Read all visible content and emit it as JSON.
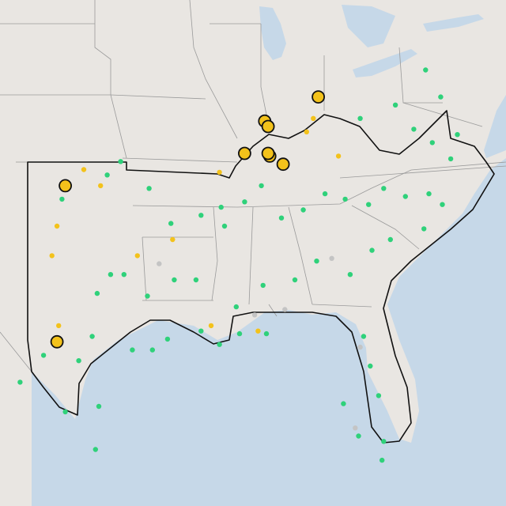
{
  "map": {
    "colors": {
      "land": "#e9e6e2",
      "water": "#c6d8e8",
      "region_outline": "#111111",
      "state_border": "#9a9a9a",
      "site_green": "#2fd17a",
      "site_yellow": "#f3c21b",
      "site_gray": "#c4c4c4",
      "large_marker_stroke": "#111111"
    },
    "legend": [],
    "sites": [
      {
        "lon": -99.5,
        "lat": 35.4,
        "status": "green"
      },
      {
        "lon": -98.2,
        "lat": 36.5,
        "status": "yellow"
      },
      {
        "lon": -97.2,
        "lat": 35.9,
        "status": "yellow"
      },
      {
        "lon": -96.8,
        "lat": 36.3,
        "status": "green"
      },
      {
        "lon": -96.0,
        "lat": 36.8,
        "status": "green"
      },
      {
        "lon": -94.3,
        "lat": 35.8,
        "status": "green"
      },
      {
        "lon": -93.0,
        "lat": 34.5,
        "status": "green"
      },
      {
        "lon": -91.2,
        "lat": 34.8,
        "status": "green"
      },
      {
        "lon": -90.0,
        "lat": 35.1,
        "status": "green"
      },
      {
        "lon": -89.8,
        "lat": 34.4,
        "status": "green"
      },
      {
        "lon": -88.6,
        "lat": 35.3,
        "status": "green"
      },
      {
        "lon": -87.6,
        "lat": 35.9,
        "status": "green"
      },
      {
        "lon": -86.4,
        "lat": 34.7,
        "status": "green"
      },
      {
        "lon": -85.1,
        "lat": 35.0,
        "status": "green"
      },
      {
        "lon": -83.8,
        "lat": 35.6,
        "status": "green"
      },
      {
        "lon": -82.6,
        "lat": 35.4,
        "status": "green"
      },
      {
        "lon": -81.2,
        "lat": 35.2,
        "status": "green"
      },
      {
        "lon": -80.3,
        "lat": 35.8,
        "status": "green"
      },
      {
        "lon": -79.0,
        "lat": 35.5,
        "status": "green"
      },
      {
        "lon": -77.6,
        "lat": 35.6,
        "status": "green"
      },
      {
        "lon": -76.8,
        "lat": 35.2,
        "status": "green"
      },
      {
        "lon": -77.9,
        "lat": 34.3,
        "status": "green"
      },
      {
        "lon": -79.9,
        "lat": 33.9,
        "status": "green"
      },
      {
        "lon": -81.0,
        "lat": 33.5,
        "status": "green"
      },
      {
        "lon": -82.3,
        "lat": 32.6,
        "status": "green"
      },
      {
        "lon": -84.3,
        "lat": 33.1,
        "status": "green"
      },
      {
        "lon": -85.6,
        "lat": 32.4,
        "status": "green"
      },
      {
        "lon": -87.5,
        "lat": 32.2,
        "status": "green"
      },
      {
        "lon": -89.1,
        "lat": 31.4,
        "status": "green"
      },
      {
        "lon": -91.5,
        "lat": 32.4,
        "status": "green"
      },
      {
        "lon": -92.8,
        "lat": 32.4,
        "status": "green"
      },
      {
        "lon": -94.4,
        "lat": 31.8,
        "status": "green"
      },
      {
        "lon": -95.8,
        "lat": 32.6,
        "status": "green"
      },
      {
        "lon": -96.6,
        "lat": 32.6,
        "status": "green"
      },
      {
        "lon": -97.4,
        "lat": 31.9,
        "status": "green"
      },
      {
        "lon": -95.3,
        "lat": 29.8,
        "status": "green"
      },
      {
        "lon": -94.1,
        "lat": 29.8,
        "status": "green"
      },
      {
        "lon": -93.2,
        "lat": 30.2,
        "status": "green"
      },
      {
        "lon": -91.2,
        "lat": 30.5,
        "status": "green"
      },
      {
        "lon": -90.1,
        "lat": 30.0,
        "status": "green"
      },
      {
        "lon": -88.9,
        "lat": 30.4,
        "status": "green"
      },
      {
        "lon": -87.3,
        "lat": 30.4,
        "status": "green"
      },
      {
        "lon": -81.5,
        "lat": 30.3,
        "status": "green"
      },
      {
        "lon": -81.1,
        "lat": 29.2,
        "status": "green"
      },
      {
        "lon": -80.6,
        "lat": 28.1,
        "status": "green"
      },
      {
        "lon": -80.3,
        "lat": 26.4,
        "status": "green"
      },
      {
        "lon": -80.4,
        "lat": 25.7,
        "status": "green"
      },
      {
        "lon": -81.8,
        "lat": 26.6,
        "status": "green"
      },
      {
        "lon": -82.7,
        "lat": 27.8,
        "status": "green"
      },
      {
        "lon": -97.3,
        "lat": 27.7,
        "status": "green"
      },
      {
        "lon": -97.5,
        "lat": 26.1,
        "status": "green"
      },
      {
        "lon": -99.3,
        "lat": 27.5,
        "status": "green"
      },
      {
        "lon": -98.5,
        "lat": 29.4,
        "status": "green"
      },
      {
        "lon": -97.7,
        "lat": 30.3,
        "status": "green"
      },
      {
        "lon": -100.6,
        "lat": 29.6,
        "status": "green"
      },
      {
        "lon": -102.0,
        "lat": 28.6,
        "status": "green"
      },
      {
        "lon": -84.9,
        "lat": 37.9,
        "status": "yellow"
      },
      {
        "lon": -84.5,
        "lat": 38.4,
        "status": "yellow"
      },
      {
        "lon": -83.0,
        "lat": 37.0,
        "status": "yellow"
      },
      {
        "lon": -81.7,
        "lat": 38.4,
        "status": "green"
      },
      {
        "lon": -79.6,
        "lat": 38.9,
        "status": "green"
      },
      {
        "lon": -78.5,
        "lat": 38.0,
        "status": "green"
      },
      {
        "lon": -77.4,
        "lat": 37.5,
        "status": "green"
      },
      {
        "lon": -76.3,
        "lat": 36.9,
        "status": "green"
      },
      {
        "lon": -75.9,
        "lat": 37.8,
        "status": "green"
      },
      {
        "lon": -76.9,
        "lat": 39.2,
        "status": "green"
      },
      {
        "lon": -77.8,
        "lat": 40.2,
        "status": "green"
      },
      {
        "lon": -90.1,
        "lat": 36.4,
        "status": "yellow"
      },
      {
        "lon": -92.9,
        "lat": 33.9,
        "status": "yellow"
      },
      {
        "lon": -90.6,
        "lat": 30.7,
        "status": "yellow"
      },
      {
        "lon": -95.0,
        "lat": 33.3,
        "status": "yellow"
      },
      {
        "lon": -99.7,
        "lat": 30.7,
        "status": "yellow"
      },
      {
        "lon": -99.8,
        "lat": 34.4,
        "status": "yellow"
      },
      {
        "lon": -100.1,
        "lat": 33.3,
        "status": "yellow"
      },
      {
        "lon": -87.8,
        "lat": 30.5,
        "status": "yellow"
      },
      {
        "lon": -93.7,
        "lat": 33.0,
        "status": "gray"
      },
      {
        "lon": -88.0,
        "lat": 31.1,
        "status": "gray"
      },
      {
        "lon": -83.4,
        "lat": 33.2,
        "status": "gray"
      },
      {
        "lon": -81.7,
        "lat": 29.9,
        "status": "gray"
      },
      {
        "lon": -82.0,
        "lat": 26.9,
        "status": "gray"
      },
      {
        "lon": -86.2,
        "lat": 31.3,
        "status": "gray"
      }
    ],
    "large_sites": [
      {
        "lon": -99.3,
        "lat": 35.9,
        "status": "yellow"
      },
      {
        "lon": -99.8,
        "lat": 30.1,
        "status": "yellow"
      },
      {
        "lon": -88.6,
        "lat": 37.1,
        "status": "yellow"
      },
      {
        "lon": -87.4,
        "lat": 38.3,
        "status": "yellow"
      },
      {
        "lon": -87.2,
        "lat": 38.1,
        "status": "yellow"
      },
      {
        "lon": -84.2,
        "lat": 39.2,
        "status": "yellow"
      },
      {
        "lon": -87.1,
        "lat": 37.0,
        "status": "yellow"
      },
      {
        "lon": -87.2,
        "lat": 37.1,
        "status": "yellow"
      },
      {
        "lon": -86.3,
        "lat": 36.7,
        "status": "yellow"
      }
    ]
  }
}
